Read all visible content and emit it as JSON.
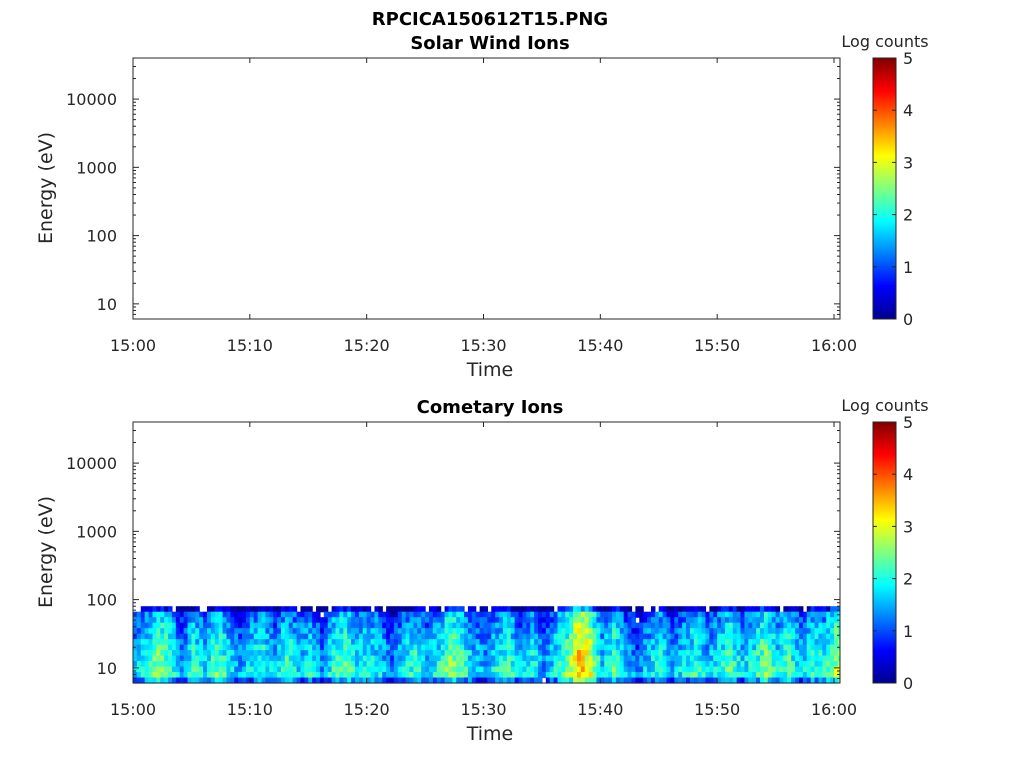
{
  "figure": {
    "title": "RPCICA150612T15.PNG"
  },
  "chart_data": [
    {
      "type": "heatmap",
      "title": "Solar Wind Ions",
      "xlabel": "Time",
      "ylabel": "Energy (eV)",
      "x_ticks": [
        "15:00",
        "15:10",
        "15:20",
        "15:30",
        "15:40",
        "15:50",
        "16:00"
      ],
      "y_ticks": [
        "10",
        "100",
        "1000",
        "10000"
      ],
      "y_scale": "log",
      "ylim": [
        6,
        40000
      ],
      "xlim": [
        "15:00",
        "16:00"
      ],
      "grid": false,
      "colorbar": {
        "label": "Log counts",
        "ticks": [
          "0",
          "1",
          "2",
          "3",
          "4",
          "5"
        ],
        "range": [
          0,
          5
        ],
        "colormap": "jet"
      },
      "values": []
    },
    {
      "type": "heatmap",
      "title": "Cometary Ions",
      "xlabel": "Time",
      "ylabel": "Energy (eV)",
      "x_ticks": [
        "15:00",
        "15:10",
        "15:20",
        "15:30",
        "15:40",
        "15:50",
        "16:00"
      ],
      "y_ticks": [
        "10",
        "100",
        "1000",
        "10000"
      ],
      "y_scale": "log",
      "ylim": [
        6,
        40000
      ],
      "xlim": [
        "15:00",
        "16:00"
      ],
      "grid": false,
      "colorbar": {
        "label": "Log counts",
        "ticks": [
          "0",
          "1",
          "2",
          "3",
          "4",
          "5"
        ],
        "range": [
          0,
          5
        ],
        "colormap": "jet"
      },
      "energy_range_ev": [
        6,
        80
      ],
      "activity_minutes": [
        {
          "t": "15:00",
          "level": 1.6
        },
        {
          "t": "15:01",
          "level": 2.1
        },
        {
          "t": "15:02",
          "level": 2.6
        },
        {
          "t": "15:03",
          "level": 2.3
        },
        {
          "t": "15:04",
          "level": 1.4
        },
        {
          "t": "15:05",
          "level": 2.2
        },
        {
          "t": "15:06",
          "level": 1.8
        },
        {
          "t": "15:07",
          "level": 2.4
        },
        {
          "t": "15:08",
          "level": 2.0
        },
        {
          "t": "15:09",
          "level": 1.5
        },
        {
          "t": "15:10",
          "level": 1.9
        },
        {
          "t": "15:11",
          "level": 2.2
        },
        {
          "t": "15:12",
          "level": 1.6
        },
        {
          "t": "15:13",
          "level": 2.3
        },
        {
          "t": "15:14",
          "level": 1.7
        },
        {
          "t": "15:15",
          "level": 2.0
        },
        {
          "t": "15:16",
          "level": 1.4
        },
        {
          "t": "15:17",
          "level": 2.2
        },
        {
          "t": "15:18",
          "level": 2.5
        },
        {
          "t": "15:19",
          "level": 1.9
        },
        {
          "t": "15:20",
          "level": 2.1
        },
        {
          "t": "15:21",
          "level": 1.8
        },
        {
          "t": "15:22",
          "level": 1.3
        },
        {
          "t": "15:23",
          "level": 1.9
        },
        {
          "t": "15:24",
          "level": 2.2
        },
        {
          "t": "15:25",
          "level": 1.7
        },
        {
          "t": "15:26",
          "level": 2.0
        },
        {
          "t": "15:27",
          "level": 2.7
        },
        {
          "t": "15:28",
          "level": 2.3
        },
        {
          "t": "15:29",
          "level": 1.8
        },
        {
          "t": "15:30",
          "level": 1.5
        },
        {
          "t": "15:31",
          "level": 2.0
        },
        {
          "t": "15:32",
          "level": 2.3
        },
        {
          "t": "15:33",
          "level": 1.6
        },
        {
          "t": "15:34",
          "level": 2.1
        },
        {
          "t": "15:35",
          "level": 1.4
        },
        {
          "t": "15:36",
          "level": 2.0
        },
        {
          "t": "15:37",
          "level": 2.5
        },
        {
          "t": "15:38",
          "level": 3.6
        },
        {
          "t": "15:39",
          "level": 3.0
        },
        {
          "t": "15:40",
          "level": 1.8
        },
        {
          "t": "15:41",
          "level": 2.4
        },
        {
          "t": "15:42",
          "level": 1.7
        },
        {
          "t": "15:43",
          "level": 1.3
        },
        {
          "t": "15:44",
          "level": 1.8
        },
        {
          "t": "15:45",
          "level": 2.1
        },
        {
          "t": "15:46",
          "level": 1.6
        },
        {
          "t": "15:47",
          "level": 1.9
        },
        {
          "t": "15:48",
          "level": 2.2
        },
        {
          "t": "15:49",
          "level": 1.7
        },
        {
          "t": "15:50",
          "level": 2.0
        },
        {
          "t": "15:51",
          "level": 2.4
        },
        {
          "t": "15:52",
          "level": 1.8
        },
        {
          "t": "15:53",
          "level": 2.1
        },
        {
          "t": "15:54",
          "level": 2.6
        },
        {
          "t": "15:55",
          "level": 1.9
        },
        {
          "t": "15:56",
          "level": 2.3
        },
        {
          "t": "15:57",
          "level": 1.7
        },
        {
          "t": "15:58",
          "level": 2.2
        },
        {
          "t": "15:59",
          "level": 2.0
        },
        {
          "t": "16:00",
          "level": 2.7
        }
      ]
    }
  ]
}
